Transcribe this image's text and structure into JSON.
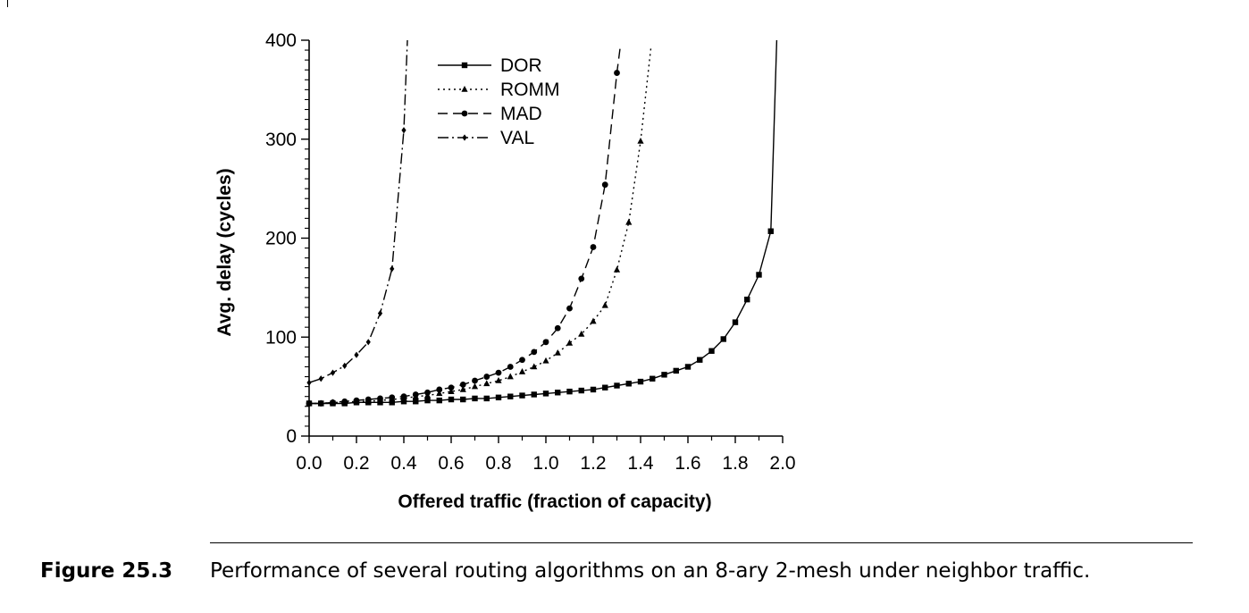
{
  "chart_data": {
    "type": "line",
    "title": "",
    "xlabel": "Offered traffic (fraction of capacity)",
    "ylabel": "Avg. delay (cycles)",
    "xlim": [
      0,
      2.0
    ],
    "ylim": [
      0,
      400
    ],
    "xticks": [
      "0.0",
      "0.2",
      "0.4",
      "0.6",
      "0.8",
      "1.0",
      "1.2",
      "1.4",
      "1.6",
      "1.8",
      "2.0"
    ],
    "yticks": [
      "0",
      "100",
      "200",
      "300",
      "400"
    ],
    "legend_position": "top-left",
    "grid": false,
    "series": [
      {
        "name": "DOR",
        "line_style": "solid",
        "marker": "square",
        "x": [
          0.0,
          0.05,
          0.1,
          0.15,
          0.2,
          0.25,
          0.3,
          0.35,
          0.4,
          0.45,
          0.5,
          0.55,
          0.6,
          0.65,
          0.7,
          0.75,
          0.8,
          0.85,
          0.9,
          0.95,
          1.0,
          1.05,
          1.1,
          1.15,
          1.2,
          1.25,
          1.3,
          1.35,
          1.4,
          1.45,
          1.5,
          1.55,
          1.6,
          1.65,
          1.7,
          1.75,
          1.8,
          1.85,
          1.9,
          1.95
        ],
        "y": [
          33,
          33,
          33,
          33,
          34,
          34,
          34,
          34,
          35,
          35,
          36,
          36,
          37,
          37,
          38,
          38,
          39,
          40,
          41,
          42,
          43,
          44,
          45,
          46,
          47,
          49,
          51,
          53,
          55,
          58,
          62,
          66,
          70,
          77,
          86,
          98,
          115,
          138,
          163,
          207
        ],
        "curve_end": [
          1.975,
          400
        ]
      },
      {
        "name": "ROMM",
        "line_style": "dotted",
        "marker": "triangle",
        "x": [
          0.0,
          0.05,
          0.1,
          0.15,
          0.2,
          0.25,
          0.3,
          0.35,
          0.4,
          0.45,
          0.5,
          0.55,
          0.6,
          0.65,
          0.7,
          0.75,
          0.8,
          0.85,
          0.9,
          0.95,
          1.0,
          1.05,
          1.1,
          1.15,
          1.2,
          1.25,
          1.3,
          1.35,
          1.4
        ],
        "y": [
          33,
          33,
          34,
          34,
          35,
          35,
          36,
          37,
          38,
          40,
          41,
          43,
          45,
          47,
          50,
          53,
          56,
          60,
          65,
          70,
          76,
          84,
          94,
          103,
          116,
          132,
          168,
          216,
          298
        ],
        "curve_end": [
          1.445,
          395
        ]
      },
      {
        "name": "MAD",
        "line_style": "dashed",
        "marker": "circle",
        "x": [
          0.0,
          0.05,
          0.1,
          0.15,
          0.2,
          0.25,
          0.3,
          0.35,
          0.4,
          0.45,
          0.5,
          0.55,
          0.6,
          0.65,
          0.7,
          0.75,
          0.8,
          0.85,
          0.9,
          0.95,
          1.0,
          1.05,
          1.1,
          1.15,
          1.2,
          1.25,
          1.3
        ],
        "y": [
          33,
          33,
          34,
          35,
          36,
          37,
          38,
          39,
          40,
          42,
          44,
          47,
          49,
          52,
          56,
          60,
          64,
          70,
          77,
          85,
          95,
          109,
          129,
          159,
          191,
          254,
          367
        ],
        "curve_end": [
          1.315,
          395
        ]
      },
      {
        "name": "VAL",
        "line_style": "dashdot",
        "marker": "diamond",
        "x": [
          0.0,
          0.05,
          0.1,
          0.15,
          0.2,
          0.25,
          0.3,
          0.35,
          0.4
        ],
        "y": [
          54,
          58,
          64,
          71,
          82,
          95,
          124,
          169,
          309
        ],
        "curve_end": [
          0.415,
          400
        ]
      }
    ]
  },
  "caption": {
    "label": "Figure 25.3",
    "text": "Performance of several routing algorithms on an 8-ary 2-mesh under neighbor traffic."
  }
}
